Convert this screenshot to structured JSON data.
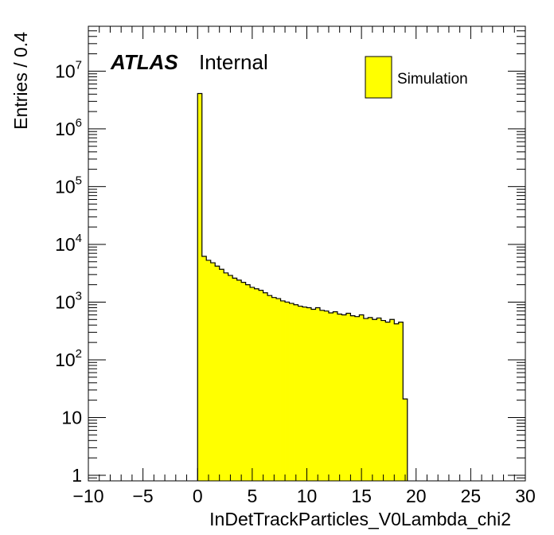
{
  "chart_data": {
    "type": "histogram",
    "title": "",
    "xlabel": "InDetTrackParticles_V0Lambda_chi2",
    "ylabel": "Entries / 0.4",
    "xlim": [
      -10,
      30
    ],
    "ylim": [
      0.8,
      60000000
    ],
    "y_scale": "log",
    "grid": false,
    "bin_width": 0.4,
    "fill_color": "#ffff00",
    "line_color": "#000000",
    "x_ticks": [
      "−10",
      "−5",
      "0",
      "5",
      "10",
      "15",
      "20",
      "25",
      "30"
    ],
    "x_tick_values": [
      -10,
      -5,
      0,
      5,
      10,
      15,
      20,
      25,
      30
    ],
    "y_ticks": [
      {
        "value": 1,
        "base": "1",
        "exp": ""
      },
      {
        "value": 10,
        "base": "10",
        "exp": ""
      },
      {
        "value": 100,
        "base": "10",
        "exp": "2"
      },
      {
        "value": 1000,
        "base": "10",
        "exp": "3"
      },
      {
        "value": 10000,
        "base": "10",
        "exp": "4"
      },
      {
        "value": 100000,
        "base": "10",
        "exp": "5"
      },
      {
        "value": 1000000,
        "base": "10",
        "exp": "6"
      },
      {
        "value": 10000000,
        "base": "10",
        "exp": "7"
      }
    ],
    "series": [
      {
        "name": "Simulation",
        "bin_low_edges": [
          0.0,
          0.4,
          0.8,
          1.2,
          1.6,
          2.0,
          2.4,
          2.8,
          3.2,
          3.6,
          4.0,
          4.4,
          4.8,
          5.2,
          5.6,
          6.0,
          6.4,
          6.8,
          7.2,
          7.6,
          8.0,
          8.4,
          8.8,
          9.2,
          9.6,
          10.0,
          10.4,
          10.8,
          11.2,
          11.6,
          12.0,
          12.4,
          12.8,
          13.2,
          13.6,
          14.0,
          14.4,
          14.8,
          15.2,
          15.6,
          16.0,
          16.4,
          16.8,
          17.2,
          17.6,
          18.0,
          18.4
        ],
        "values": [
          4100000,
          6200,
          5300,
          4800,
          4200,
          3700,
          3200,
          2900,
          2600,
          2400,
          2200,
          2000,
          1800,
          1700,
          1600,
          1450,
          1300,
          1200,
          1150,
          1050,
          1000,
          950,
          900,
          850,
          820,
          800,
          750,
          800,
          720,
          700,
          650,
          680,
          620,
          600,
          640,
          580,
          560,
          600,
          520,
          540,
          500,
          530,
          480,
          450,
          500,
          420,
          450
        ],
        "tail_bins": [
          {
            "low": 18.8,
            "value": 21
          }
        ]
      }
    ]
  },
  "atlas_label": "ATLAS",
  "atlas_sub": "Internal",
  "legend": {
    "label": "Simulation",
    "fill_color": "#ffff00",
    "position": "top-right"
  }
}
